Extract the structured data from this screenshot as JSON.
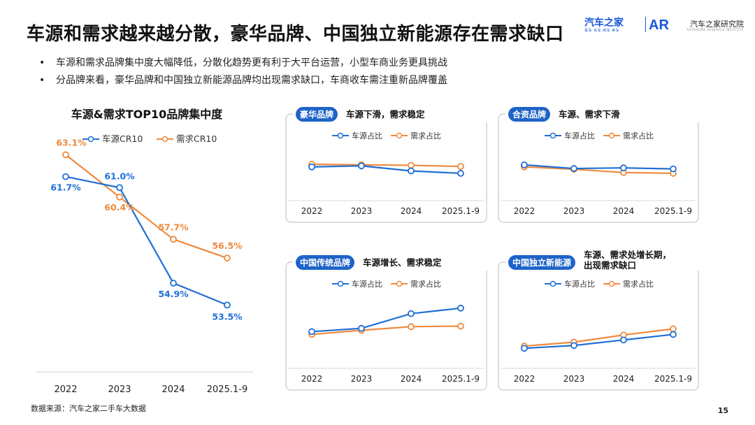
{
  "title": "车源和需求越来越分散，豪华品牌、中国独立新能源存在需求缺口",
  "logo": {
    "brand": "汽车之家",
    "slogan": "看车 买车 用车 卖车",
    "mark": "AR",
    "institute": "汽车之家研究院",
    "institute_en": "AUTOHOME RESEARCH INSTITUTE"
  },
  "bullets": [
    "车源和需求品牌集中度大幅降低，分散化趋势更有利于大平台运营，小型车商业务更具挑战",
    "分品牌来看，豪华品牌和中国独立新能源品牌均出现需求缺口，车商收车需注重新品牌覆盖"
  ],
  "source": "数据来源：汽车之家二手车大数据",
  "page_number": "15",
  "colors": {
    "blue": "#1f6fd6",
    "orange": "#ee8a3d",
    "badge": "#1e63c8"
  },
  "chart_data": [
    {
      "type": "line",
      "title": "车源&需求TOP10品牌集中度",
      "categories": [
        "2022",
        "2023",
        "2024",
        "2025.1-9"
      ],
      "series": [
        {
          "name": "车源CR10",
          "color": "#1f6fd6",
          "values": [
            61.7,
            61.0,
            54.9,
            53.5
          ],
          "labels": [
            "61.7%",
            "61.0%",
            "54.9%",
            "53.5%"
          ]
        },
        {
          "name": "需求CR10",
          "color": "#ee8a3d",
          "values": [
            63.1,
            60.4,
            57.7,
            56.5
          ],
          "labels": [
            "63.1%",
            "60.4%",
            "57.7%",
            "56.5%"
          ]
        }
      ],
      "ylim": [
        52,
        64.5
      ],
      "legend": "top"
    },
    {
      "type": "line",
      "badge": "豪华品牌",
      "subtitle": "车源下滑，需求稳定",
      "categories": [
        "2022",
        "2023",
        "2024",
        "2025.1-9"
      ],
      "series": [
        {
          "name": "车源占比",
          "color": "#1f6fd6",
          "values": [
            0.5,
            0.55,
            0.3,
            0.18
          ]
        },
        {
          "name": "需求占比",
          "color": "#ee8a3d",
          "values": [
            0.63,
            0.6,
            0.58,
            0.52
          ]
        }
      ],
      "ylim": [
        -1,
        1.6
      ],
      "legend": "top"
    },
    {
      "type": "line",
      "badge": "合资品牌",
      "subtitle": "车源、需求下滑",
      "categories": [
        "2022",
        "2023",
        "2024",
        "2025.1-9"
      ],
      "series": [
        {
          "name": "车源占比",
          "color": "#1f6fd6",
          "values": [
            0.6,
            0.42,
            0.45,
            0.4
          ]
        },
        {
          "name": "需求占比",
          "color": "#ee8a3d",
          "values": [
            0.5,
            0.38,
            0.22,
            0.18
          ]
        }
      ],
      "ylim": [
        -1,
        1.6
      ],
      "legend": "top"
    },
    {
      "type": "line",
      "badge": "中国传统品牌",
      "subtitle": "车源增长、需求稳定",
      "categories": [
        "2022",
        "2023",
        "2024",
        "2025.1-9"
      ],
      "series": [
        {
          "name": "车源占比",
          "color": "#1f6fd6",
          "values": [
            0.2,
            0.32,
            0.85,
            1.05
          ]
        },
        {
          "name": "需求占比",
          "color": "#ee8a3d",
          "values": [
            0.1,
            0.25,
            0.38,
            0.4
          ]
        }
      ],
      "ylim": [
        -1,
        1.6
      ],
      "legend": "top"
    },
    {
      "type": "line",
      "badge": "中国独立新能源",
      "subtitle": "车源、需求处增长期，\n出现需求缺口",
      "categories": [
        "2022",
        "2023",
        "2024",
        "2025.1-9"
      ],
      "series": [
        {
          "name": "车源占比",
          "color": "#1f6fd6",
          "values": [
            -0.4,
            -0.3,
            -0.1,
            0.1
          ]
        },
        {
          "name": "需求占比",
          "color": "#ee8a3d",
          "values": [
            -0.32,
            -0.18,
            0.08,
            0.3
          ]
        }
      ],
      "ylim": [
        -1,
        1.6
      ],
      "legend": "top"
    }
  ]
}
